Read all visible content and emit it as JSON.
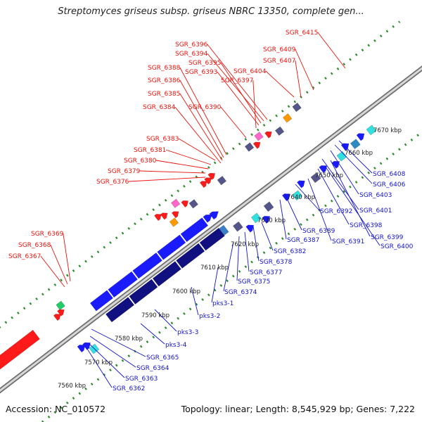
{
  "title": "Streptomyces griseus subsp. griseus NBRC 13350, complete gen...",
  "footer": {
    "accession": "Accession: NC_010572",
    "stats": "Topology: linear; Length: 8,545,929 bp; Genes: 7,222"
  },
  "colors": {
    "label_upper": "#e8140c",
    "label_lower": "#1414c8",
    "backbone": "#9a9a9a",
    "ticks": "#2e8b2e",
    "gene_red": "#ff1a1a",
    "gene_blue": "#1a1aff",
    "gene_navy": "#101080",
    "gene_purple": "#55558a",
    "gene_cyan": "#33e0e0",
    "gene_green": "#22cc66"
  },
  "scale_labels": [
    "7560 kbp",
    "7570 kbp",
    "7580 kbp",
    "7590 kbp",
    "7600 kbp",
    "7610 kbp",
    "7620 kbp",
    "7630 kbp",
    "7640 kbp",
    "7650 kbp",
    "7660 kbp",
    "7670 kbp"
  ],
  "upper_labels": [
    "SGR_6415",
    "SGR_6409",
    "SGR_6407",
    "SGR_6404",
    "SGR_6396",
    "SGR_6394",
    "SGR_6395",
    "SGR_6393",
    "SGR_6397",
    "SGR_6388",
    "SGR_6386",
    "SGR_6385",
    "SGR_6384",
    "SGR_6390",
    "SGR_6383",
    "SGR_6381",
    "SGR_6380",
    "SGR_6379",
    "SGR_6376",
    "SGR_6369",
    "SGR_6368",
    "SGR_6367"
  ],
  "lower_labels": [
    "SGR_6408",
    "SGR_6406",
    "SGR_6403",
    "SGR_6401",
    "SGR_6392",
    "SGR_6398",
    "SGR_6389",
    "SGR_6399",
    "SGR_6387",
    "SGR_6391",
    "SGR_6400",
    "SGR_6382",
    "SGR_6378",
    "SGR_6377",
    "SGR_6375",
    "SGR_6374",
    "pks3-1",
    "pks3-2",
    "pks3-3",
    "pks3-4",
    "SGR_6365",
    "SGR_6364",
    "SGR_6363",
    "SGR_6362"
  ]
}
